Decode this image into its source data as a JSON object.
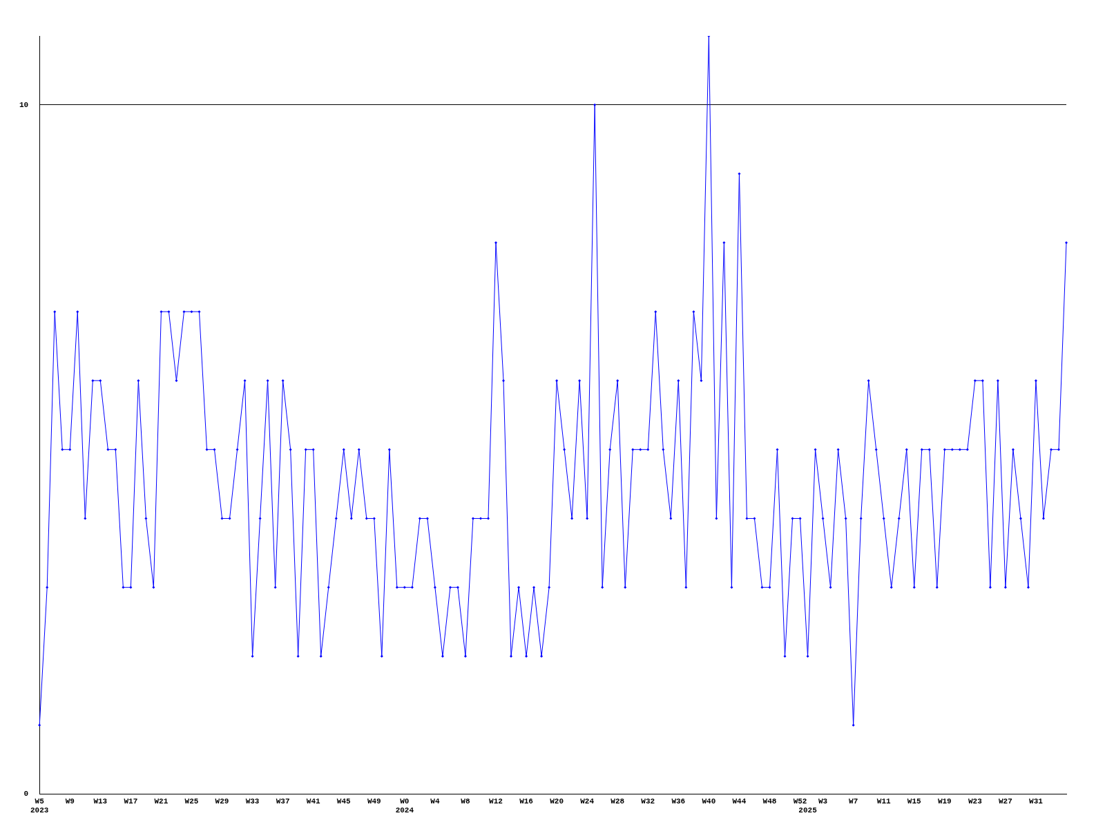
{
  "chart_data": {
    "type": "line",
    "categories": [
      "W5\n2023",
      null,
      null,
      null,
      "W9",
      null,
      null,
      null,
      "W13",
      null,
      null,
      null,
      "W17",
      null,
      null,
      null,
      "W21",
      null,
      null,
      null,
      "W25",
      null,
      null,
      null,
      "W29",
      null,
      null,
      null,
      "W33",
      null,
      null,
      null,
      "W37",
      null,
      null,
      null,
      "W41",
      null,
      null,
      null,
      "W45",
      null,
      null,
      null,
      "W49",
      null,
      null,
      null,
      "W0\n2024",
      null,
      null,
      null,
      "W4",
      null,
      null,
      null,
      "W8",
      null,
      null,
      null,
      "W12",
      null,
      null,
      null,
      "W16",
      null,
      null,
      null,
      "W20",
      null,
      null,
      null,
      "W24",
      null,
      null,
      null,
      "W28",
      null,
      null,
      null,
      "W32",
      null,
      null,
      null,
      "W36",
      null,
      null,
      null,
      "W40",
      null,
      null,
      null,
      "W44",
      null,
      null,
      null,
      "W48",
      null,
      null,
      null,
      "W52",
      "\n2025",
      null,
      "W3",
      null,
      null,
      null,
      "W7",
      null,
      null,
      null,
      "W11",
      null,
      null,
      null,
      "W15",
      null,
      null,
      null,
      "W19",
      null,
      null,
      null,
      "W23",
      null,
      null,
      null,
      "W27",
      null,
      null,
      null,
      "W31",
      null,
      null,
      null,
      null
    ],
    "series": [
      {
        "color": "#0000ff",
        "values": [
          1,
          3,
          7,
          5,
          5,
          7,
          4,
          6,
          6,
          5,
          5,
          3,
          3,
          6,
          4,
          3,
          7,
          7,
          6,
          7,
          7,
          7,
          5,
          5,
          4,
          4,
          5,
          6,
          2,
          4,
          6,
          3,
          6,
          5,
          2,
          5,
          5,
          2,
          3,
          4,
          5,
          4,
          5,
          4,
          4,
          2,
          5,
          3,
          3,
          3,
          4,
          4,
          3,
          2,
          3,
          3,
          2,
          4,
          4,
          4,
          8,
          6,
          2,
          3,
          2,
          3,
          2,
          3,
          6,
          5,
          4,
          6,
          4,
          10,
          3,
          5,
          6,
          3,
          5,
          5,
          5,
          7,
          5,
          4,
          6,
          3,
          7,
          6,
          11,
          4,
          8,
          3,
          9,
          4,
          4,
          3,
          3,
          5,
          2,
          4,
          4,
          2,
          5,
          4,
          3,
          5,
          4,
          1,
          4,
          6,
          5,
          4,
          3,
          4,
          5,
          3,
          5,
          5,
          3,
          5,
          5,
          5,
          5,
          6,
          6,
          3,
          6,
          3,
          5,
          4,
          3,
          6,
          4,
          5,
          5,
          8
        ]
      }
    ],
    "ylim": [
      0,
      11
    ],
    "yticks": [
      0,
      10
    ],
    "grid": "y",
    "marker": "diamond",
    "line_style": "solid",
    "legend": false
  }
}
